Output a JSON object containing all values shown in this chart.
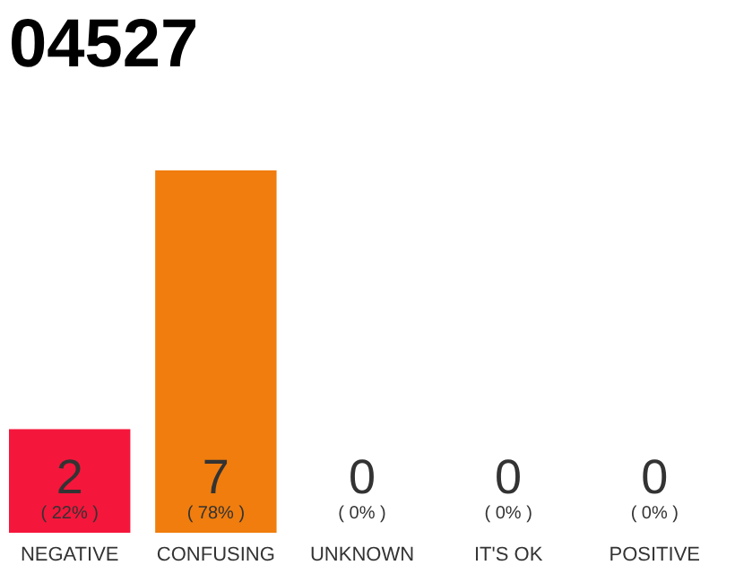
{
  "chart_data": {
    "type": "bar",
    "title": "04527",
    "categories": [
      "NEGATIVE",
      "CONFUSING",
      "UNKNOWN",
      "IT'S OK",
      "POSITIVE"
    ],
    "values": [
      2,
      7,
      0,
      0,
      0
    ],
    "colors": [
      "#f5163b",
      "#f07d0d",
      "#ebebeb",
      "#ebebeb",
      "#ebebeb"
    ],
    "data_labels": true,
    "annotations": [
      "( 22% )",
      "( 78% )",
      "( 0% )",
      "( 0% )",
      "( 0% )"
    ]
  }
}
